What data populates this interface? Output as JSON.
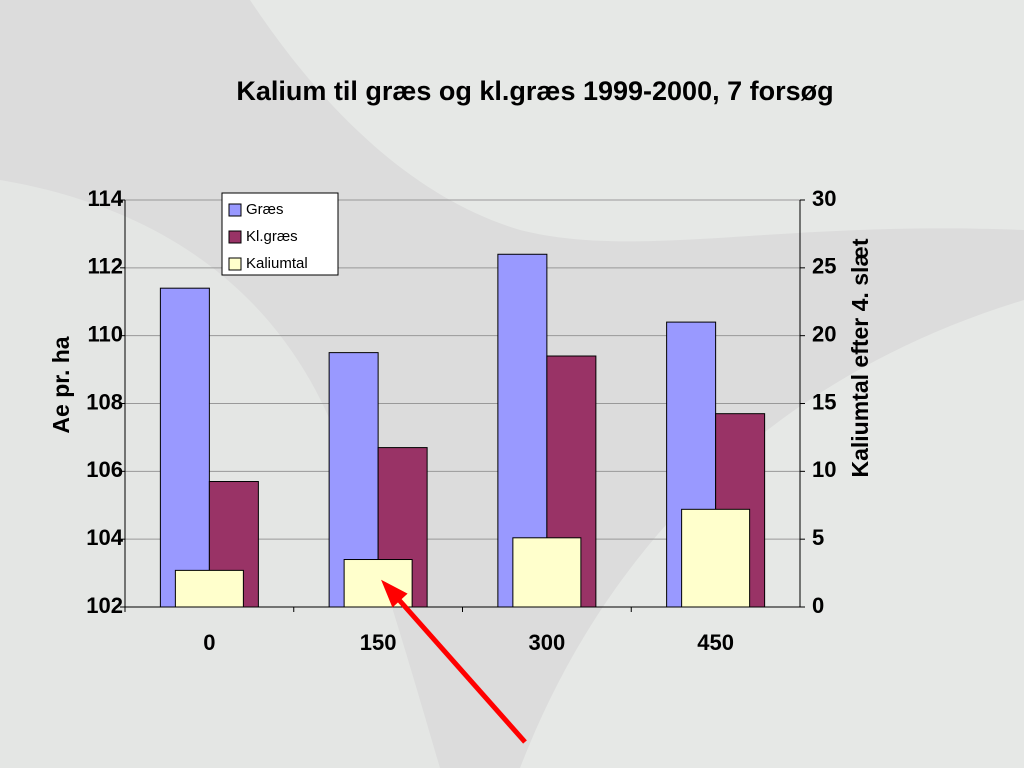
{
  "chart_data": {
    "type": "bar",
    "title": "Kalium til græs og kl.græs 1999-2000, 7 forsøg",
    "y_label": "Ae pr. ha",
    "y2_label": "Kaliumtal efter 4. slæt",
    "categories": [
      "0",
      "150",
      "300",
      "450"
    ],
    "series": [
      {
        "name": "Græs",
        "color": "#9999ff",
        "values": [
          111.4,
          109.5,
          112.4,
          110.4
        ]
      },
      {
        "name": "Kl.græs",
        "color": "#993366",
        "values": [
          105.7,
          106.7,
          109.4,
          107.7
        ]
      },
      {
        "name": "Kaliumtal",
        "color": "#ffffcc",
        "axis": "y2",
        "values": [
          2.7,
          3.5,
          5.1,
          7.2
        ]
      }
    ],
    "ylim": [
      102,
      114
    ],
    "yticks": [
      102,
      104,
      106,
      108,
      110,
      112,
      114
    ],
    "y2lim": [
      0,
      30
    ],
    "y2ticks": [
      0,
      5,
      10,
      15,
      20,
      25,
      30
    ],
    "grid": true,
    "legend": "top-left"
  }
}
